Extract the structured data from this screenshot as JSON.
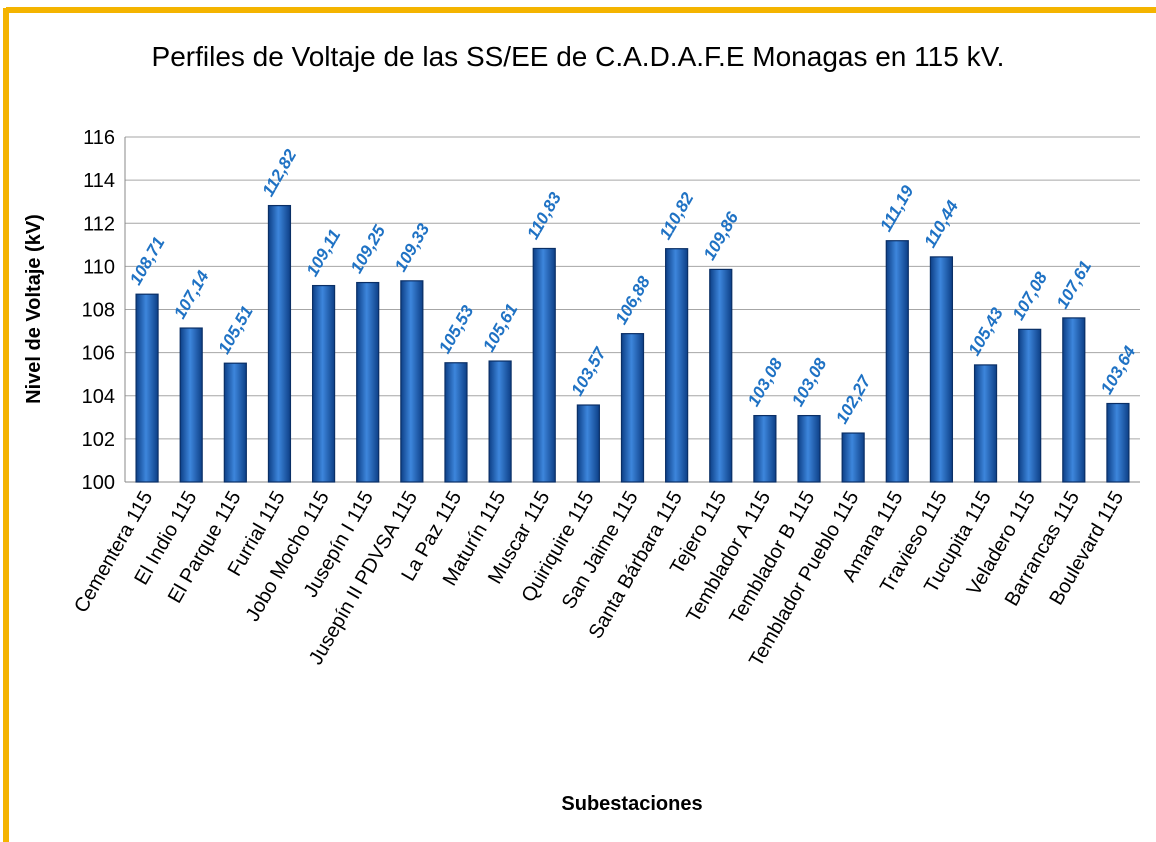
{
  "chart_data": {
    "type": "bar",
    "title": "Perfiles de Voltaje de las SS/EE de C.A.D.A.F.E Monagas en 115 kV.",
    "x_label": "Subestaciones",
    "y_label": "Nivel de Voltaje (kV)",
    "categories": [
      "Cementera 115",
      "El Indio 115",
      "El Parque 115",
      "Furrial 115",
      "Jobo Mocho 115",
      "Jusepín I 115",
      "Jusepín II PDVSA 115",
      "La Paz 115",
      "Maturín 115",
      "Muscar 115",
      "Quiriquire 115",
      "San Jaime 115",
      "Santa Bárbara 115",
      "Tejero 115",
      "Temblador A 115",
      "Temblador B 115",
      "Temblador Pueblo 115",
      "Amana 115",
      "Travieso 115",
      "Tucupita 115",
      "Veladero 115",
      "Barrancas 115",
      "Boulevard 115"
    ],
    "values": [
      108.71,
      107.14,
      105.51,
      112.82,
      109.11,
      109.25,
      109.33,
      105.53,
      105.61,
      110.83,
      103.57,
      106.88,
      110.82,
      109.86,
      103.08,
      103.08,
      102.27,
      111.19,
      110.44,
      105.43,
      107.08,
      107.61,
      103.64
    ],
    "value_labels": [
      "108,71",
      "107,14",
      "105,51",
      "112,82",
      "109,11",
      "109,25",
      "109,33",
      "105,53",
      "105,61",
      "110,83",
      "103,57",
      "106,88",
      "110,82",
      "109,86",
      "103,08",
      "103,08",
      "102,27",
      "111,19",
      "110,44",
      "105,43",
      "107,08",
      "107,61",
      "103,64"
    ],
    "color": "#1f5fae",
    "ylim": [
      100,
      116
    ],
    "yticks": [
      100,
      102,
      104,
      106,
      108,
      110,
      112,
      114,
      116
    ],
    "grid": true
  }
}
